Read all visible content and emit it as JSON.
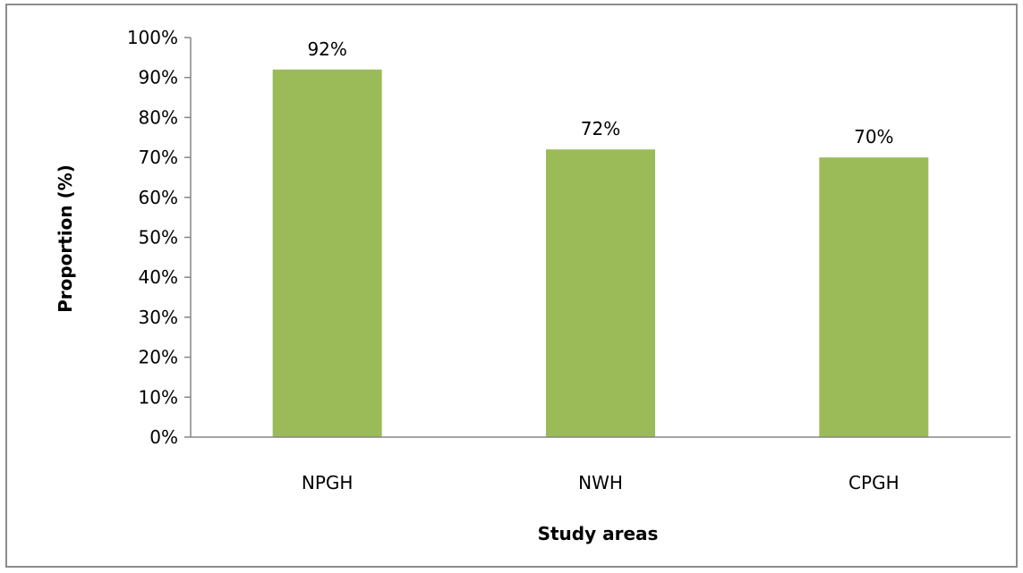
{
  "chart_data": {
    "type": "bar",
    "categories": [
      "NPGH",
      "NWH",
      "CPGH"
    ],
    "values": [
      92,
      72,
      70
    ],
    "data_labels": [
      "92%",
      "72%",
      "70%"
    ],
    "ylim": [
      0,
      100
    ],
    "ytick_values": [
      0,
      10,
      20,
      30,
      40,
      50,
      60,
      70,
      80,
      90,
      100
    ],
    "ytick_labels": [
      "0%",
      "10%",
      "20%",
      "30%",
      "40%",
      "50%",
      "60%",
      "70%",
      "80%",
      "90%",
      "100%"
    ],
    "xlabel": "Study areas",
    "ylabel": "Proportion (%)",
    "bar_color": "#9bbb59",
    "grid": false,
    "legend": false
  }
}
